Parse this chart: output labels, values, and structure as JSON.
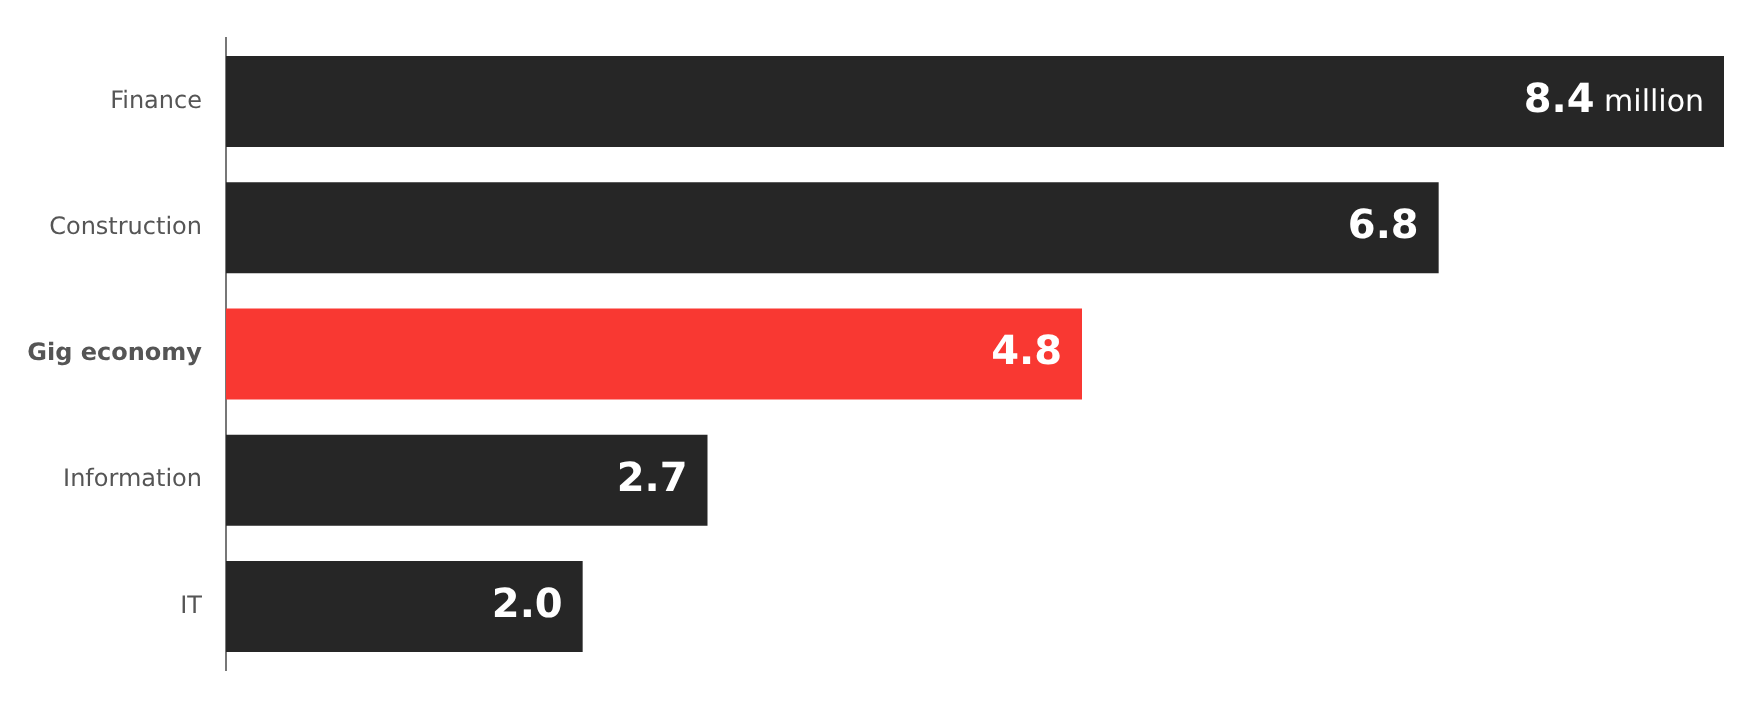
{
  "chart_data": {
    "type": "bar",
    "orientation": "horizontal",
    "relative": false,
    "categories": [
      "Finance",
      "Construction",
      "Gig economy",
      "Information",
      "IT"
    ],
    "values": [
      8.4,
      6.8,
      4.8,
      2.7,
      2.0
    ],
    "colors": [
      "#262626",
      "#262626",
      "#f93832",
      "#262626",
      "#262626"
    ],
    "value_labels": [
      "8.4 million",
      "6.8",
      "4.8",
      "2.7",
      "2.0"
    ],
    "legend": false
  }
}
